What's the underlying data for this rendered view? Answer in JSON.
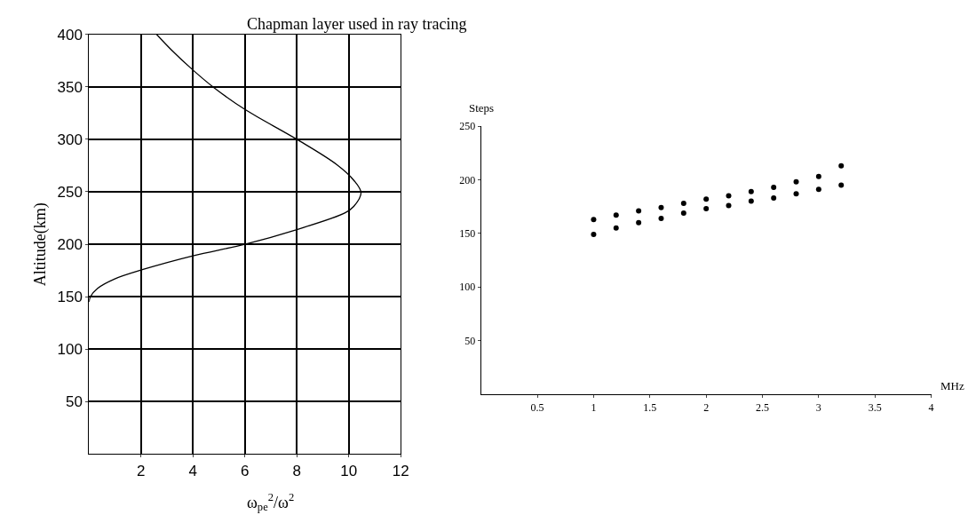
{
  "chart_data": [
    {
      "type": "line",
      "title": "Chapman layer used in ray tracing",
      "xlabel": "ω$_{pe}$$^{2}$/ω$^{2}$",
      "ylabel": "Altitude(km)",
      "x": [
        0,
        0.05,
        0.33,
        0.99,
        2.08,
        4.0,
        6.0,
        8.0,
        9.86,
        10.19,
        10.47,
        10.19,
        9.53,
        8.0,
        6.03,
        4.82,
        4.0,
        3.18,
        2.6
      ],
      "series": [
        {
          "color": "#000000",
          "values": [
            145,
            150,
            158,
            167,
            176,
            189,
            200,
            214,
            230,
            236,
            249,
            261,
            276,
            300,
            328,
            349,
            366,
            385,
            400
          ]
        }
      ],
      "xlim": [
        0,
        12
      ],
      "ylim": [
        0,
        400
      ],
      "xticks": [
        2,
        4,
        6,
        8,
        10,
        12
      ],
      "yticks": [
        50,
        100,
        150,
        200,
        250,
        300,
        350,
        400
      ],
      "grid": true,
      "marker": "none",
      "line_style": "solid"
    },
    {
      "type": "scatter",
      "xlabel": "MHz",
      "ylabel": "Steps",
      "x": [
        1.0,
        1.2,
        1.4,
        1.6,
        1.8,
        2.0,
        2.2,
        2.4,
        2.6,
        2.8,
        3.0,
        3.2
      ],
      "series": [
        {
          "color": "#000000",
          "values": [
            163,
            167,
            171,
            174,
            178,
            182,
            185,
            189,
            193,
            198,
            203,
            213
          ]
        },
        {
          "color": "#000000",
          "values": [
            149,
            155,
            160,
            164,
            169,
            173,
            176,
            180,
            183,
            187,
            191,
            195
          ]
        }
      ],
      "xlim": [
        0,
        4
      ],
      "ylim": [
        0,
        250
      ],
      "xticks": [
        0.5,
        1,
        1.5,
        2,
        2.5,
        3,
        3.5,
        4
      ],
      "yticks": [
        50,
        100,
        150,
        200,
        250
      ],
      "marker": "circle"
    }
  ]
}
